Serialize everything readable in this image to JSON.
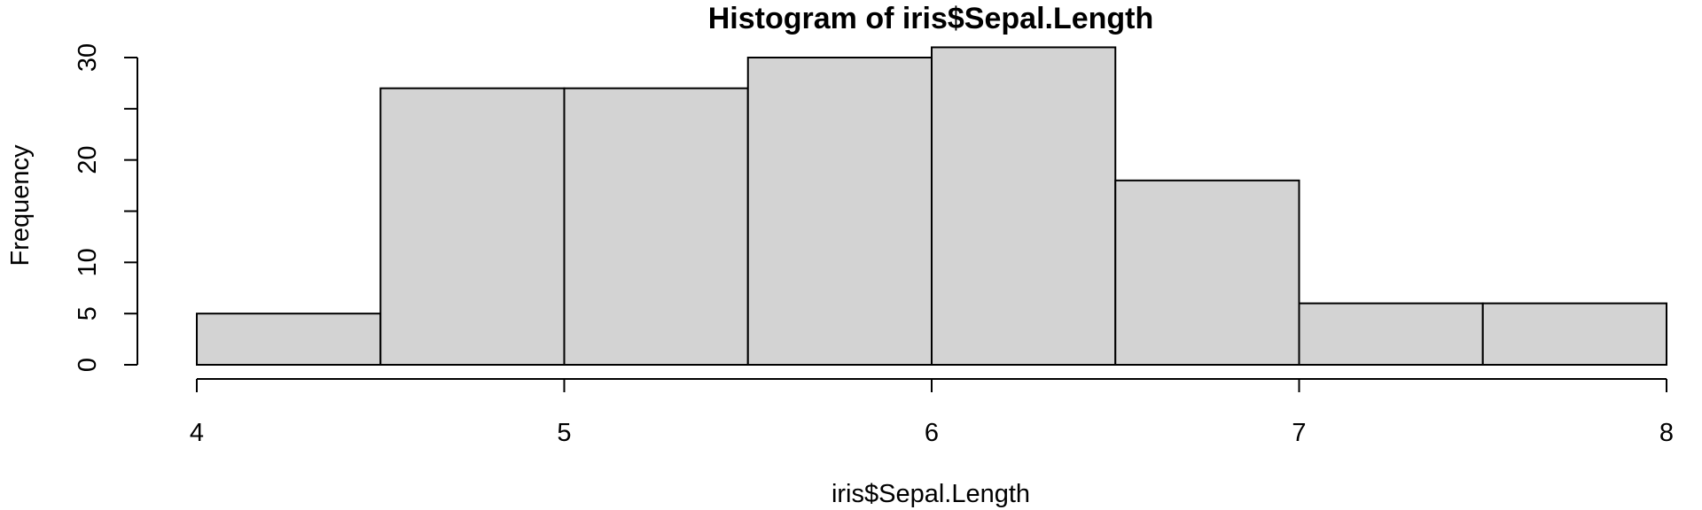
{
  "chart_data": {
    "type": "bar",
    "title": "Histogram of iris$Sepal.Length",
    "xlabel": "iris$Sepal.Length",
    "ylabel": "Frequency",
    "bins": [
      {
        "x0": 4.0,
        "x1": 4.5,
        "value": 5
      },
      {
        "x0": 4.5,
        "x1": 5.0,
        "value": 27
      },
      {
        "x0": 5.0,
        "x1": 5.5,
        "value": 27
      },
      {
        "x0": 5.5,
        "x1": 6.0,
        "value": 30
      },
      {
        "x0": 6.0,
        "x1": 6.5,
        "value": 31
      },
      {
        "x0": 6.5,
        "x1": 7.0,
        "value": 18
      },
      {
        "x0": 7.0,
        "x1": 7.5,
        "value": 6
      },
      {
        "x0": 7.5,
        "x1": 8.0,
        "value": 6
      }
    ],
    "xlim": [
      4,
      8
    ],
    "ylim": [
      0,
      30
    ],
    "x_ticks": [
      {
        "value": 4,
        "label": "4"
      },
      {
        "value": 5,
        "label": "5"
      },
      {
        "value": 6,
        "label": "6"
      },
      {
        "value": 7,
        "label": "7"
      },
      {
        "value": 8,
        "label": "8"
      }
    ],
    "y_ticks": [
      {
        "value": 0,
        "label": "0"
      },
      {
        "value": 5,
        "label": "5"
      },
      {
        "value": 10,
        "label": "10"
      },
      {
        "value": 15,
        "label": ""
      },
      {
        "value": 20,
        "label": "20"
      },
      {
        "value": 25,
        "label": ""
      },
      {
        "value": 30,
        "label": "30"
      }
    ],
    "bar_fill": "#d3d3d3",
    "bar_stroke": "#000000",
    "grid": false,
    "legend": "none"
  }
}
